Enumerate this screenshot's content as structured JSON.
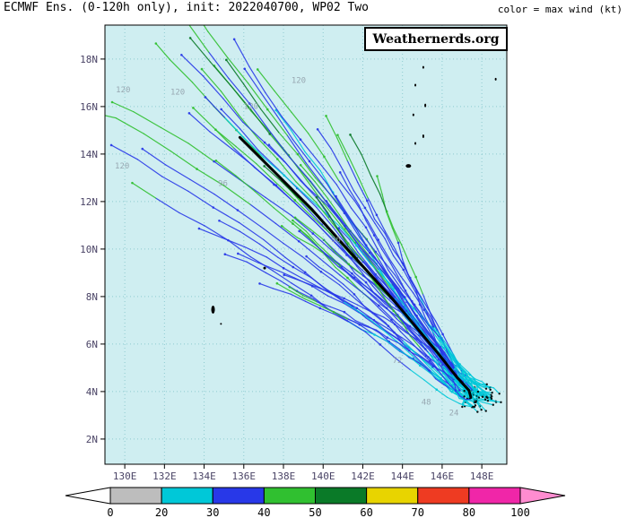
{
  "header": {
    "title": "ECMWF Ens. (0-120h only), init: 2022040700, WP02 Two",
    "subtitle": "color = max wind (kt)"
  },
  "watermark": "Weathernerds.org",
  "colorbar": {
    "labels": [
      "0",
      "20",
      "30",
      "40",
      "50",
      "60",
      "70",
      "80",
      "100"
    ]
  },
  "chart_data": {
    "type": "line",
    "subtype": "tropical-cyclone-ensemble-tracks",
    "model": "ECMWF Ensemble",
    "storm": "WP02 Two",
    "init": "2022040700",
    "forecast_hour_range": [
      0,
      120
    ],
    "x_ticks": [
      {
        "label": "130E",
        "lon": 130
      },
      {
        "label": "132E",
        "lon": 132
      },
      {
        "label": "134E",
        "lon": 134
      },
      {
        "label": "136E",
        "lon": 136
      },
      {
        "label": "138E",
        "lon": 138
      },
      {
        "label": "140E",
        "lon": 140
      },
      {
        "label": "142E",
        "lon": 142
      },
      {
        "label": "144E",
        "lon": 144
      },
      {
        "label": "146E",
        "lon": 146
      },
      {
        "label": "148E",
        "lon": 148
      }
    ],
    "y_ticks": [
      {
        "label": "2N",
        "lat": 2
      },
      {
        "label": "4N",
        "lat": 4
      },
      {
        "label": "6N",
        "lat": 6
      },
      {
        "label": "8N",
        "lat": 8
      },
      {
        "label": "10N",
        "lat": 10
      },
      {
        "label": "12N",
        "lat": 12
      },
      {
        "label": "14N",
        "lat": 14
      },
      {
        "label": "16N",
        "lat": 16
      },
      {
        "label": "18N",
        "lat": 18
      }
    ],
    "lon_range": [
      129.0,
      149.26
    ],
    "lat_range": [
      0.94,
      19.43
    ],
    "map_bg": "#cfeef1",
    "grid_color": "#86c6cc",
    "axis_label_color": "#4a4466",
    "mean_track_hours": [
      0,
      12,
      24,
      36,
      48,
      60,
      72,
      84,
      96,
      108,
      120
    ],
    "mean_track": [
      [
        147.45,
        3.75
      ],
      [
        147.35,
        4.05
      ],
      [
        146.75,
        4.6
      ],
      [
        145.85,
        5.55
      ],
      [
        144.75,
        6.65
      ],
      [
        143.55,
        7.85
      ],
      [
        142.25,
        9.05
      ],
      [
        140.9,
        10.3
      ],
      [
        139.4,
        11.7
      ],
      [
        137.6,
        13.2
      ],
      [
        135.8,
        14.7
      ]
    ],
    "ensemble": {
      "members": 51,
      "seed": 12,
      "step_hours": 6
    },
    "wind_scale": {
      "levels": [
        0,
        20,
        30,
        40,
        50,
        60,
        70,
        80,
        100
      ],
      "colors": [
        "#bdbdbd",
        "#00c8d8",
        "#2838e8",
        "#30c030",
        "#0a7a28",
        "#e8d400",
        "#ee3b22",
        "#f026a8"
      ],
      "under_arrow": "#ffffff",
      "over_arrow": "#ff8cd0"
    },
    "time_labels": [
      {
        "t": "24",
        "lon": 146.35,
        "lat": 3.0
      },
      {
        "t": "48",
        "lon": 144.95,
        "lat": 3.45
      },
      {
        "t": "72",
        "lon": 143.5,
        "lat": 5.2
      },
      {
        "t": "96",
        "lon": 134.7,
        "lat": 12.65
      },
      {
        "t": "96",
        "lon": 140.4,
        "lat": 10.3
      },
      {
        "t": "120",
        "lon": 129.55,
        "lat": 16.6
      },
      {
        "t": "120",
        "lon": 132.3,
        "lat": 16.5
      },
      {
        "t": "120",
        "lon": 138.4,
        "lat": 17.0
      },
      {
        "t": "120",
        "lon": 129.5,
        "lat": 13.4
      },
      {
        "t": "120",
        "lon": 136.0,
        "lat": 15.9
      }
    ],
    "islands": [
      [
        144.8,
        18.7,
        3,
        4
      ],
      [
        145.05,
        17.65,
        2,
        3
      ],
      [
        144.65,
        16.9,
        2,
        3
      ],
      [
        145.15,
        16.05,
        2,
        4
      ],
      [
        144.55,
        15.65,
        2,
        3
      ],
      [
        145.05,
        14.75,
        2,
        4
      ],
      [
        144.65,
        14.45,
        2,
        3
      ],
      [
        144.3,
        13.5,
        6,
        4
      ],
      [
        149.0,
        19.0,
        2,
        3
      ],
      [
        148.7,
        17.15,
        2,
        3
      ],
      [
        134.45,
        7.45,
        4,
        9
      ],
      [
        134.85,
        6.85,
        2,
        2
      ],
      [
        137.05,
        9.2,
        3,
        3
      ]
    ]
  }
}
